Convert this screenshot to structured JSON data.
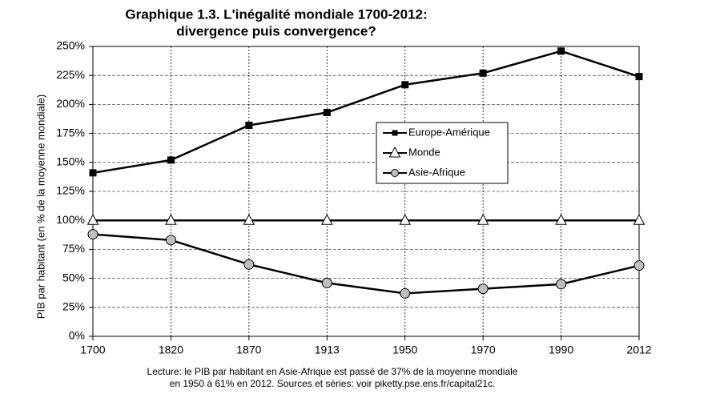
{
  "chart_data": {
    "type": "line",
    "title": [
      "Graphique 1.3. L'inégalité mondiale 1700-2012:",
      "divergence puis convergence?"
    ],
    "y_label": "PIB par habitant (en % de la moyenne mondiale)",
    "note": [
      "Lecture: le PIB par habitant en Asie-Afrique est passé de 37% de la moyenne mondiale",
      "en 1950 à 61% en 2012. Sources et séries: voir piketty.pse.ens.fr/capital21c."
    ],
    "categories": [
      "1700",
      "1820",
      "1870",
      "1913",
      "1950",
      "1970",
      "1990",
      "2012"
    ],
    "series": [
      {
        "name": "Europe-Amérique",
        "color": "#000000",
        "marker": "square",
        "values": [
          141,
          152,
          182,
          193,
          217,
          227,
          246,
          224
        ]
      },
      {
        "name": "Monde",
        "color": "#000000",
        "marker": "triangle",
        "values": [
          100,
          100,
          100,
          100,
          100,
          100,
          100,
          100
        ]
      },
      {
        "name": "Asie-Afrique",
        "color": "#000000",
        "marker": "circle",
        "values": [
          88,
          83,
          62,
          46,
          37,
          41,
          45,
          61
        ]
      }
    ],
    "ylim": [
      0,
      250
    ],
    "yticks": [
      {
        "value": 0,
        "label": "0%"
      },
      {
        "value": 25,
        "label": "25%"
      },
      {
        "value": 50,
        "label": "50%"
      },
      {
        "value": 75,
        "label": "75%"
      },
      {
        "value": 100,
        "label": "100%"
      },
      {
        "value": 125,
        "label": "125%"
      },
      {
        "value": 150,
        "label": "150%"
      },
      {
        "value": 175,
        "label": "175%"
      },
      {
        "value": 200,
        "label": "200%"
      },
      {
        "value": 225,
        "label": "225%"
      },
      {
        "value": 250,
        "label": "250%"
      }
    ],
    "grid": true,
    "legend": "upper right"
  }
}
